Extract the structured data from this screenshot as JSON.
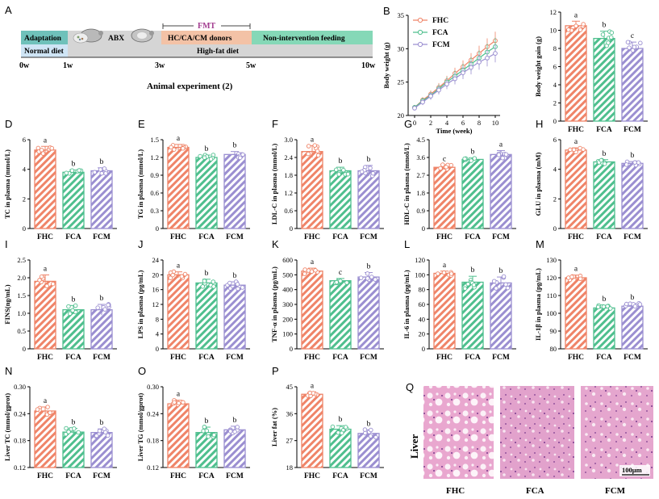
{
  "colors": {
    "FHC": "#ef8468",
    "FCA": "#4fbf8e",
    "FCM": "#9b8fd1",
    "adapt": "#6fc1ba",
    "donor": "#f3c2a6",
    "hfd": "#d5d5d5",
    "normal": "#cfe5f5",
    "nonint": "#85d8b7",
    "tissue": "#e7a9cf"
  },
  "groups": [
    "FHC",
    "FCA",
    "FCM"
  ],
  "timeline": {
    "letter": "A",
    "adaptation": "Adaptation",
    "normal_diet": "Normal diet",
    "abx": "ABX",
    "fmt": "FMT",
    "donors": "HC/CA/CM donors",
    "nonintervention": "Non-intervention feeding",
    "hfd": "High-fat diet",
    "weeks": [
      "0w",
      "1w",
      "3w",
      "5w",
      "10w"
    ],
    "caption": "Animal experiment (2)"
  },
  "chart_data": [
    {
      "id": "B",
      "type": "line",
      "ylabel": "Body weight (g)",
      "xlabel": "Time (week)",
      "ylim": [
        20,
        35
      ],
      "yticks": [
        20,
        25,
        30,
        35
      ],
      "xlim": [
        0,
        10
      ],
      "xticks": [
        0,
        2,
        4,
        6,
        8,
        10
      ],
      "legend": "top-left",
      "x": [
        0,
        1,
        2,
        3,
        4,
        5,
        6,
        7,
        8,
        9,
        10
      ],
      "series": [
        {
          "name": "FHC",
          "values": [
            21.2,
            22.3,
            23.2,
            24.2,
            25.2,
            26.3,
            27.3,
            28.3,
            29.3,
            30.3,
            31.2
          ]
        },
        {
          "name": "FCA",
          "values": [
            21.2,
            22.2,
            23.0,
            24.0,
            25.0,
            25.9,
            26.8,
            27.7,
            28.6,
            29.5,
            30.3
          ]
        },
        {
          "name": "FCM",
          "values": [
            21.1,
            22.0,
            22.9,
            23.8,
            24.7,
            25.5,
            26.4,
            27.2,
            28.0,
            28.6,
            29.3
          ]
        }
      ]
    },
    {
      "id": "C",
      "type": "bar",
      "ylabel": "Body weight gain (g)",
      "ylim": [
        0,
        12
      ],
      "yticks": [
        0,
        2,
        4,
        6,
        8,
        10,
        12
      ],
      "categories": [
        "FHC",
        "FCA",
        "FCM"
      ],
      "values": [
        10.5,
        9.1,
        8.0
      ],
      "errors": [
        0.5,
        0.8,
        0.7
      ],
      "letters": [
        "a",
        "b",
        "c"
      ]
    },
    {
      "id": "D",
      "type": "bar",
      "ylabel": "TC in plasma (mmol/L)",
      "ylim": [
        0,
        6
      ],
      "yticks": [
        0,
        2,
        4,
        6
      ],
      "categories": [
        "FHC",
        "FCA",
        "FCM"
      ],
      "values": [
        5.3,
        3.8,
        3.9
      ],
      "errors": [
        0.25,
        0.15,
        0.2
      ],
      "letters": [
        "a",
        "b",
        "b"
      ]
    },
    {
      "id": "E",
      "type": "bar",
      "ylabel": "TG in plasma (mmol/L)",
      "ylim": [
        0,
        1.5
      ],
      "yticks": [
        0,
        0.3,
        0.6,
        0.9,
        1.2,
        1.5
      ],
      "ytick_labels": [
        "0",
        "0.3",
        "0.6",
        "0.9",
        "1.2",
        "1.5"
      ],
      "categories": [
        "FHC",
        "FCA",
        "FCM"
      ],
      "values": [
        1.37,
        1.2,
        1.25
      ],
      "errors": [
        0.05,
        0.04,
        0.05
      ],
      "letters": [
        "a",
        "b",
        "b"
      ]
    },
    {
      "id": "F",
      "type": "bar",
      "ylabel": "LDL-C in plasma (mmol/L)",
      "ylim": [
        0,
        3.0
      ],
      "yticks": [
        0,
        0.6,
        1.2,
        1.8,
        2.4,
        3.0
      ],
      "ytick_labels": [
        "0",
        "0.6",
        "1.2",
        "1.8",
        "2.4",
        "3.0"
      ],
      "categories": [
        "FHC",
        "FCA",
        "FCM"
      ],
      "values": [
        2.6,
        1.95,
        1.95
      ],
      "errors": [
        0.2,
        0.12,
        0.18
      ],
      "letters": [
        "a",
        "b",
        "b"
      ]
    },
    {
      "id": "G",
      "type": "bar",
      "ylabel": "HDL-C in plasma (mmol/L)",
      "ylim": [
        0,
        4.5
      ],
      "yticks": [
        0,
        0.9,
        1.8,
        2.7,
        3.6,
        4.5
      ],
      "ytick_labels": [
        "0",
        "0.9",
        "1.8",
        "2.7",
        "3.6",
        "4.5"
      ],
      "categories": [
        "FHC",
        "FCA",
        "FCM"
      ],
      "values": [
        3.1,
        3.5,
        3.75
      ],
      "errors": [
        0.12,
        0.08,
        0.2
      ],
      "letters": [
        "c",
        "b",
        "a"
      ]
    },
    {
      "id": "H",
      "type": "bar",
      "ylabel": "GLU in plasma (mM)",
      "ylim": [
        0,
        6
      ],
      "yticks": [
        0,
        2,
        4,
        6
      ],
      "categories": [
        "FHC",
        "FCA",
        "FCM"
      ],
      "values": [
        5.3,
        4.5,
        4.4
      ],
      "errors": [
        0.15,
        0.15,
        0.12
      ],
      "letters": [
        "a",
        "b",
        "b"
      ]
    },
    {
      "id": "I",
      "type": "bar",
      "ylabel": "FINS(ng/mL)",
      "ylim": [
        0,
        2.5
      ],
      "yticks": [
        0,
        0.5,
        1.0,
        1.5,
        2.0,
        2.5
      ],
      "ytick_labels": [
        "0",
        "0.5",
        "1.0",
        "1.5",
        "2.0",
        "2.5"
      ],
      "categories": [
        "FHC",
        "FCA",
        "FCM"
      ],
      "values": [
        1.9,
        1.1,
        1.1
      ],
      "errors": [
        0.18,
        0.12,
        0.15
      ],
      "letters": [
        "a",
        "b",
        "b"
      ]
    },
    {
      "id": "J",
      "type": "bar",
      "ylabel": "LPS in plasma (pg/mL)",
      "ylim": [
        0,
        24
      ],
      "yticks": [
        0,
        4,
        8,
        12,
        16,
        20,
        24
      ],
      "categories": [
        "FHC",
        "FCA",
        "FCM"
      ],
      "values": [
        20.0,
        17.8,
        17.2
      ],
      "errors": [
        0.8,
        1.0,
        0.9
      ],
      "letters": [
        "a",
        "b",
        "b"
      ]
    },
    {
      "id": "K",
      "type": "bar",
      "ylabel": "TNF-α in plasma (pg/mL)",
      "ylim": [
        0,
        600
      ],
      "yticks": [
        0,
        100,
        200,
        300,
        400,
        500,
        600
      ],
      "categories": [
        "FHC",
        "FCA",
        "FCM"
      ],
      "values": [
        525,
        460,
        485
      ],
      "errors": [
        20,
        15,
        30
      ],
      "letters": [
        "a",
        "c",
        "b"
      ]
    },
    {
      "id": "L",
      "type": "bar",
      "ylabel": "IL-6 in plasma (pg/mL)",
      "ylim": [
        0,
        120
      ],
      "yticks": [
        0,
        20,
        40,
        60,
        80,
        100,
        120
      ],
      "categories": [
        "FHC",
        "FCA",
        "FCM"
      ],
      "values": [
        102,
        90,
        89
      ],
      "errors": [
        3,
        8,
        8
      ],
      "letters": [
        "a",
        "b",
        "b"
      ]
    },
    {
      "id": "M",
      "type": "bar",
      "ylabel": "IL-1β in plasma (pg/mL)",
      "ylim": [
        80,
        130
      ],
      "yticks": [
        80,
        90,
        100,
        110,
        120,
        130
      ],
      "categories": [
        "FHC",
        "FCA",
        "FCM"
      ],
      "values": [
        120,
        103,
        104
      ],
      "errors": [
        1.5,
        1.5,
        1.5
      ],
      "letters": [
        "a",
        "b",
        "b"
      ]
    },
    {
      "id": "N",
      "type": "bar",
      "ylabel": "Liver TC (mmol/gprot)",
      "ylim": [
        0.12,
        0.3
      ],
      "yticks": [
        0.12,
        0.18,
        0.24,
        0.3
      ],
      "ytick_labels": [
        "0.12",
        "0.18",
        "0.24",
        "0.30"
      ],
      "categories": [
        "FHC",
        "FCA",
        "FCM"
      ],
      "values": [
        0.246,
        0.199,
        0.198
      ],
      "errors": [
        0.009,
        0.008,
        0.008
      ],
      "letters": [
        "a",
        "b",
        "b"
      ]
    },
    {
      "id": "O",
      "type": "bar",
      "ylabel": "Liver TG (mmol/gprot)",
      "ylim": [
        0.12,
        0.3
      ],
      "yticks": [
        0.12,
        0.18,
        0.24,
        0.3
      ],
      "ytick_labels": [
        "0.12",
        "0.18",
        "0.24",
        "0.30"
      ],
      "categories": [
        "FHC",
        "FCA",
        "FCM"
      ],
      "values": [
        0.262,
        0.198,
        0.204
      ],
      "errors": [
        0.008,
        0.012,
        0.008
      ],
      "letters": [
        "a",
        "b",
        "b"
      ]
    },
    {
      "id": "P",
      "type": "bar",
      "ylabel": "Liver fat (%)",
      "ylim": [
        18,
        45
      ],
      "yticks": [
        18,
        27,
        36,
        45
      ],
      "categories": [
        "FHC",
        "FCA",
        "FCM"
      ],
      "values": [
        42.5,
        30.8,
        29.4
      ],
      "errors": [
        0.8,
        1.2,
        1.2
      ],
      "letters": [
        "a",
        "b",
        "b"
      ]
    }
  ],
  "histology": {
    "letter": "Q",
    "row_label": "Liver",
    "scale_bar": "100μm",
    "groups": [
      "FHC",
      "FCA",
      "FCM"
    ]
  }
}
